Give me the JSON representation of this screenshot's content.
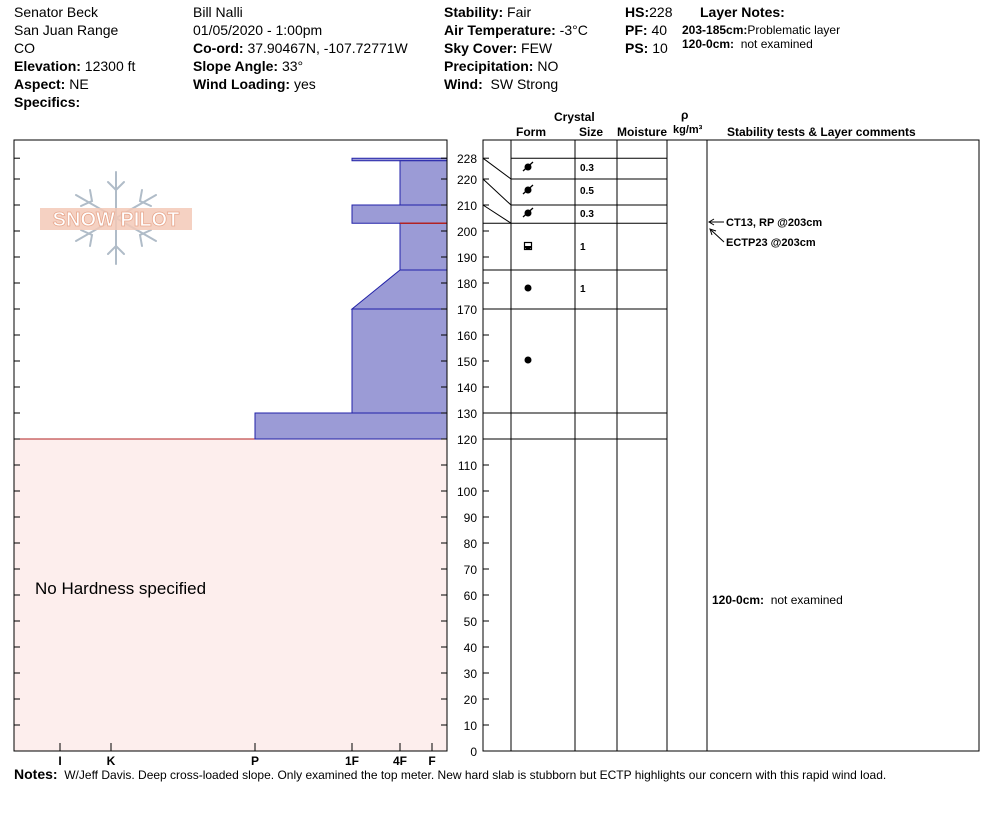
{
  "header": {
    "site": "Senator Beck",
    "range": "San Juan Range",
    "state": "CO",
    "elevation_label": "Elevation:",
    "elevation_value": "12300 ft",
    "aspect_label": "Aspect:",
    "aspect_value": "NE",
    "specifics_label": "Specifics:",
    "observer": "Bill Nalli",
    "datetime": "01/05/2020 - 1:00pm",
    "coord_label": "Co-ord:",
    "coord_value": "37.90467N, -107.72771W",
    "slope_label": "Slope Angle:",
    "slope_value": "33°",
    "wind_loading_label": "Wind Loading:",
    "wind_loading_value": "yes",
    "stability_label": "Stability:",
    "stability_value": "Fair",
    "air_temp_label": "Air Temperature:",
    "air_temp_value": "-3°C",
    "sky_label": "Sky Cover:",
    "sky_value": "FEW",
    "precip_label": "Precipitation:",
    "precip_value": "NO",
    "wind_label": "Wind:",
    "wind_value": "SW Strong",
    "hs_label": "HS:",
    "hs_value": "228",
    "pf_label": "PF:",
    "pf_value": "40",
    "ps_label": "PS:",
    "ps_value": "10",
    "layer_notes_title": "Layer Notes:",
    "layer_notes": [
      {
        "range": "203-185cm:",
        "note": "Problematic layer"
      },
      {
        "range": "120-0cm:",
        "note": "not examined"
      }
    ]
  },
  "logo_text": "SNOW PILOT",
  "columns": {
    "crystal": "Crystal",
    "form": "Form",
    "size": "Size",
    "moisture": "Moisture",
    "rho": "ρ",
    "density_unit": "kg/m³",
    "stability": "Stability tests & Layer comments"
  },
  "chart_data": {
    "type": "snow-profile",
    "y_axis": {
      "min": 0,
      "max": 228,
      "ticks": [
        0,
        10,
        20,
        30,
        40,
        50,
        60,
        70,
        80,
        90,
        100,
        110,
        120,
        130,
        140,
        150,
        160,
        170,
        180,
        190,
        200,
        210,
        220,
        228
      ]
    },
    "hardness_axis": [
      "I",
      "K",
      "P",
      "1F",
      "4F",
      "F"
    ],
    "hardness_profile": [
      {
        "top": 228,
        "bottom": 227,
        "hardness": "1F"
      },
      {
        "top": 227,
        "bottom": 210,
        "hardness": "4F"
      },
      {
        "top": 210,
        "bottom": 203,
        "hardness": "1F"
      },
      {
        "top": 203,
        "bottom": 185,
        "hardness": "4F"
      },
      {
        "top": 185,
        "bottom": 170,
        "hardness": "4F-1F"
      },
      {
        "top": 170,
        "bottom": 130,
        "hardness": "1F"
      },
      {
        "top": 130,
        "bottom": 120,
        "hardness": "P"
      }
    ],
    "not_examined": {
      "top": 120,
      "bottom": 0,
      "label": "No Hardness specified"
    },
    "layers": [
      {
        "top": 228,
        "bottom": 220,
        "form": "precipitation-particles-icon",
        "size": "0.3"
      },
      {
        "top": 220,
        "bottom": 210,
        "form": "precipitation-particles-icon",
        "size": "0.5"
      },
      {
        "top": 210,
        "bottom": 203,
        "form": "precipitation-particles-icon",
        "size": "0.3"
      },
      {
        "top": 203,
        "bottom": 185,
        "form": "rounded-facet-icon",
        "size": "1"
      },
      {
        "top": 185,
        "bottom": 170,
        "form": "rounded-grain-icon",
        "size": "1"
      },
      {
        "top": 170,
        "bottom": 130,
        "form": "rounded-grain-icon",
        "size": ""
      },
      {
        "top": 130,
        "bottom": 120,
        "form": "",
        "size": ""
      }
    ],
    "stability_tests": [
      {
        "label": "CT13, RP @203cm",
        "depth": 203
      },
      {
        "label": "ECTP23 @203cm",
        "depth": 203
      }
    ],
    "layer_comments": [
      {
        "range": "120-0cm:",
        "note": "not examined",
        "depth": 60
      }
    ],
    "colors": {
      "hardness_fill": "#9b9bd6",
      "hardness_edge": "#2222a8",
      "not_examined_fill": "#fdeeed",
      "failure_line": "#b22222"
    }
  },
  "notes_label": "Notes:",
  "notes_text": "W/Jeff Davis. Deep cross-loaded slope. Only examined the top meter. New hard slab is stubborn but ECTP highlights our concern with this rapid wind load."
}
